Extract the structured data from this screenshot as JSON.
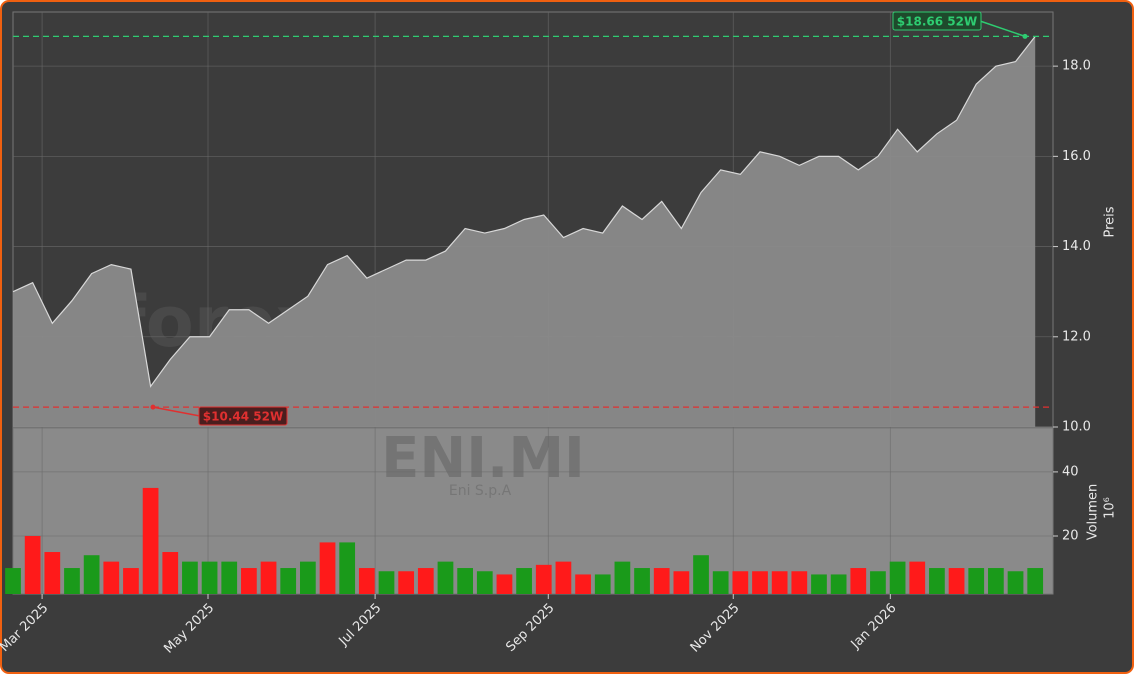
{
  "chart_data": {
    "type": "area",
    "categories": [
      null,
      null,
      null,
      null,
      null,
      null,
      null,
      null,
      null,
      null,
      null,
      null,
      null,
      null,
      null,
      null,
      null,
      null,
      null,
      null,
      null,
      null,
      null,
      null,
      null,
      null,
      null,
      null,
      null,
      null,
      null,
      null,
      null,
      null,
      null,
      null,
      null,
      null,
      null,
      null,
      null,
      null,
      null,
      null,
      null,
      null,
      null,
      null,
      null,
      null,
      null,
      null,
      null
    ],
    "xlim": [
      0,
      52.6
    ],
    "xticks": [
      {
        "value": 1.48,
        "label": "Mar 2025"
      },
      {
        "value": 9.92,
        "label": "May 2025"
      },
      {
        "value": 18.42,
        "label": "Jul 2025"
      },
      {
        "value": 27.23,
        "label": "Sep 2025"
      },
      {
        "value": 36.64,
        "label": "Nov 2025"
      },
      {
        "value": 44.63,
        "label": "Jan 2026"
      }
    ],
    "series": [
      {
        "color": "#8a8a8a",
        "values": [
          13.0,
          13.2,
          12.3,
          12.8,
          13.4,
          13.6,
          13.5,
          10.9,
          11.5,
          12.0,
          12.0,
          12.6,
          12.6,
          12.3,
          12.6,
          12.9,
          13.6,
          13.8,
          13.3,
          13.5,
          13.7,
          13.7,
          13.9,
          14.4,
          14.3,
          14.4,
          14.6,
          14.7,
          14.2,
          14.4,
          14.3,
          14.9,
          14.6,
          15.0,
          14.4,
          15.2,
          15.7,
          15.6,
          16.1,
          16.0,
          15.8,
          16.0,
          16.0,
          15.7,
          16.0,
          16.6,
          16.1,
          16.5,
          16.8,
          17.6,
          18.0,
          18.1,
          18.66
        ]
      }
    ],
    "ylim": [
      10,
      19.2
    ],
    "yticks": [
      {
        "value": 10,
        "label": "10.0"
      },
      {
        "value": 12,
        "label": "12.0"
      },
      {
        "value": 14,
        "label": "14.0"
      },
      {
        "value": 16,
        "label": "16.0"
      },
      {
        "value": 18,
        "label": "18.0"
      }
    ],
    "y_label": "Preis",
    "grid": true,
    "high": {
      "value": 18.66,
      "label": "$18.66 52W",
      "color": "#2ecc71"
    },
    "low": {
      "value": 10.44,
      "label": "$10.44 52W",
      "color": "#e03030"
    },
    "volume": {
      "values": [
        10,
        20,
        15,
        10,
        14,
        12,
        10,
        35,
        15,
        12,
        12,
        12,
        10,
        12,
        10,
        12,
        18,
        18,
        10,
        9,
        9,
        10,
        12,
        10,
        9,
        8,
        10,
        11,
        12,
        8,
        8,
        12,
        10,
        10,
        9,
        14,
        9,
        9,
        9,
        9,
        9,
        8,
        8,
        10,
        9,
        12,
        12,
        10,
        10,
        10,
        10,
        9,
        10
      ],
      "colors": [
        "#1a9a1a",
        "#ff1a1a",
        "#ff1a1a",
        "#1a9a1a",
        "#1a9a1a",
        "#ff1a1a",
        "#ff1a1a",
        "#ff1a1a",
        "#ff1a1a",
        "#1a9a1a",
        "#1a9a1a",
        "#1a9a1a",
        "#ff1a1a",
        "#ff1a1a",
        "#1a9a1a",
        "#1a9a1a",
        "#ff1a1a",
        "#1a9a1a",
        "#ff1a1a",
        "#1a9a1a",
        "#ff1a1a",
        "#ff1a1a",
        "#1a9a1a",
        "#1a9a1a",
        "#1a9a1a",
        "#ff1a1a",
        "#1a9a1a",
        "#ff1a1a",
        "#ff1a1a",
        "#ff1a1a",
        "#1a9a1a",
        "#1a9a1a",
        "#1a9a1a",
        "#ff1a1a",
        "#ff1a1a",
        "#1a9a1a",
        "#1a9a1a",
        "#ff1a1a",
        "#ff1a1a",
        "#ff1a1a",
        "#ff1a1a",
        "#1a9a1a",
        "#1a9a1a",
        "#ff1a1a",
        "#1a9a1a",
        "#1a9a1a",
        "#ff1a1a",
        "#1a9a1a",
        "#ff1a1a",
        "#1a9a1a",
        "#1a9a1a",
        "#1a9a1a",
        "#1a9a1a"
      ],
      "ylim": [
        1.9,
        53.7
      ],
      "yticks": [
        20,
        40
      ],
      "y_label": "Volumen",
      "unit_label": "10⁶"
    },
    "watermark": "forexsignale.trade",
    "ticker": "ENI.MI",
    "company": "Eni S.p.A"
  }
}
